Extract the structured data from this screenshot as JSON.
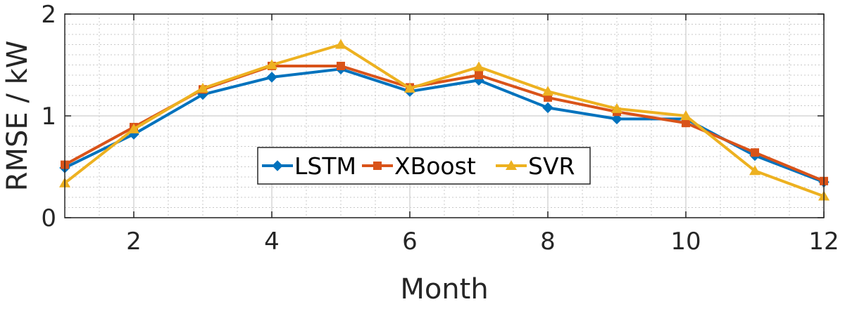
{
  "chart_data": {
    "type": "line",
    "title": "",
    "xlabel": "Month",
    "ylabel": "RMSE / kW",
    "x": [
      1,
      2,
      3,
      4,
      5,
      6,
      7,
      8,
      9,
      10,
      11,
      12
    ],
    "xlim": [
      1,
      12
    ],
    "ylim": [
      0,
      2
    ],
    "xticks": [
      2,
      4,
      6,
      8,
      10,
      12
    ],
    "yticks": [
      0,
      1,
      2
    ],
    "grid": true,
    "minor_grid": true,
    "legend_position": "center",
    "legend_orientation": "horizontal",
    "series": [
      {
        "name": "LSTM",
        "color": "#0072BD",
        "marker": "diamond",
        "values": [
          0.49,
          0.82,
          1.21,
          1.38,
          1.46,
          1.24,
          1.35,
          1.08,
          0.97,
          0.97,
          0.61,
          0.35
        ]
      },
      {
        "name": "XBoost",
        "color": "#D95319",
        "marker": "square",
        "values": [
          0.52,
          0.89,
          1.26,
          1.49,
          1.49,
          1.28,
          1.4,
          1.18,
          1.04,
          0.93,
          0.64,
          0.36
        ]
      },
      {
        "name": "SVR",
        "color": "#EDB120",
        "marker": "triangle",
        "values": [
          0.34,
          0.87,
          1.27,
          1.5,
          1.7,
          1.27,
          1.48,
          1.24,
          1.07,
          1.0,
          0.46,
          0.21
        ]
      }
    ]
  }
}
